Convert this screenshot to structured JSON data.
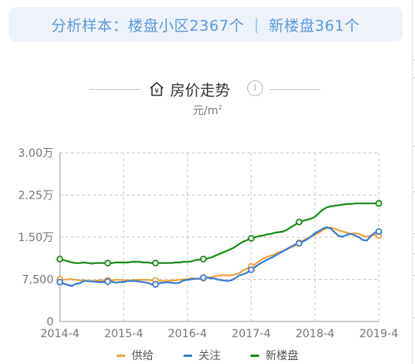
{
  "banner": {
    "samples_label": "分析样本：",
    "community_text": "楼盘小区2367个",
    "separator": "|",
    "new_text": "新楼盘361个"
  },
  "header": {
    "title": "房价走势",
    "unit_text": "元/m",
    "unit_sup": "2",
    "house_icon": "house-yen-icon",
    "info_icon": "info-icon",
    "info_glyph": "i",
    "icon_glyph": "¥"
  },
  "colors": {
    "supply": "#e8a43a",
    "attention": "#3b7bd0",
    "new": "#1a8c1a",
    "grid": "#c8c8c8",
    "axis_text": "#777777",
    "banner_text": "#5a9ae0"
  },
  "chart_data": {
    "type": "line",
    "y_tick_labels": [
      "0",
      "7,500",
      "1.50万",
      "2.25万",
      "3.00万"
    ],
    "x_tick_labels": [
      "2014-4",
      "2015-4",
      "2016-4",
      "2017-4",
      "2018-4",
      "2019-4"
    ],
    "ylim": [
      0,
      30000
    ],
    "grid": true,
    "legend_position": "bottom",
    "x_start": "2014-04",
    "x_end": "2019-04",
    "series": [
      {
        "name": "供给",
        "color_key": "supply",
        "values": [
          7500,
          7400,
          7500,
          7500,
          7400,
          7300,
          7300,
          7200,
          7200,
          7200,
          7300,
          7300,
          7300,
          7300,
          7400,
          7400,
          7300,
          7300,
          7300,
          7400,
          7400,
          7400,
          7400,
          7300,
          7300,
          7200,
          7200,
          7200,
          7300,
          7300,
          7400,
          7500,
          7500,
          7700,
          7600,
          7600,
          7700,
          7800,
          7900,
          8000,
          8200,
          8200,
          8200,
          8200,
          8400,
          8600,
          9100,
          9400,
          9800,
          10200,
          10700,
          11200,
          11500,
          11700,
          12000,
          12300,
          12600,
          12900,
          13200,
          13500,
          14000,
          14400,
          14800,
          15100,
          15400,
          15800,
          16300,
          16600,
          16700,
          16500,
          16200,
          16000,
          15800,
          15600,
          15700,
          15600,
          15200,
          15100,
          15300,
          15400,
          15300
        ]
      },
      {
        "name": "关注",
        "color_key": "attention",
        "values": [
          7000,
          6700,
          6500,
          6300,
          6700,
          6800,
          7200,
          7200,
          7100,
          7100,
          7000,
          7000,
          7100,
          7100,
          6900,
          7000,
          7000,
          7200,
          7200,
          7200,
          7100,
          7000,
          6900,
          6600,
          6600,
          6800,
          6900,
          7000,
          6900,
          6800,
          6900,
          7300,
          7400,
          7500,
          7600,
          7600,
          7800,
          7800,
          7700,
          7600,
          7400,
          7300,
          7200,
          7300,
          7700,
          8200,
          8400,
          8700,
          9200,
          9700,
          10200,
          10600,
          11000,
          11300,
          11700,
          12100,
          12500,
          12900,
          13300,
          13700,
          13900,
          14200,
          14600,
          15100,
          15700,
          16100,
          16500,
          16800,
          16500,
          15800,
          15200,
          15100,
          15400,
          15600,
          15300,
          15000,
          14500,
          14400,
          15200,
          15800,
          16000
        ]
      },
      {
        "name": "新楼盘",
        "color_key": "new",
        "values": [
          11100,
          10900,
          10700,
          10500,
          10400,
          10400,
          10500,
          10400,
          10300,
          10400,
          10400,
          10400,
          10400,
          10400,
          10500,
          10500,
          10500,
          10500,
          10600,
          10600,
          10600,
          10500,
          10500,
          10400,
          10400,
          10400,
          10400,
          10400,
          10400,
          10500,
          10500,
          10600,
          10600,
          10700,
          10900,
          11000,
          11100,
          11200,
          11400,
          11700,
          12000,
          12300,
          12600,
          12900,
          13300,
          13800,
          14200,
          14500,
          14800,
          15000,
          15200,
          15300,
          15500,
          15600,
          15800,
          15900,
          16000,
          16300,
          16800,
          17200,
          17700,
          17900,
          18100,
          18300,
          18600,
          19300,
          19900,
          20300,
          20500,
          20600,
          20700,
          20800,
          20900,
          20900,
          21000,
          21000,
          21000,
          21000,
          21000,
          21000,
          21000
        ]
      }
    ],
    "markers": [
      {
        "series": 0,
        "index": 0
      },
      {
        "series": 0,
        "index": 12
      },
      {
        "series": 0,
        "index": 24
      },
      {
        "series": 0,
        "index": 36
      },
      {
        "series": 0,
        "index": 48
      },
      {
        "series": 0,
        "index": 60
      },
      {
        "series": 0,
        "index": 80
      },
      {
        "series": 1,
        "index": 0
      },
      {
        "series": 1,
        "index": 12
      },
      {
        "series": 1,
        "index": 24
      },
      {
        "series": 1,
        "index": 36
      },
      {
        "series": 1,
        "index": 48
      },
      {
        "series": 1,
        "index": 60
      },
      {
        "series": 1,
        "index": 80
      },
      {
        "series": 2,
        "index": 0
      },
      {
        "series": 2,
        "index": 12
      },
      {
        "series": 2,
        "index": 24
      },
      {
        "series": 2,
        "index": 36
      },
      {
        "series": 2,
        "index": 48
      },
      {
        "series": 2,
        "index": 60
      },
      {
        "series": 2,
        "index": 80
      }
    ]
  }
}
